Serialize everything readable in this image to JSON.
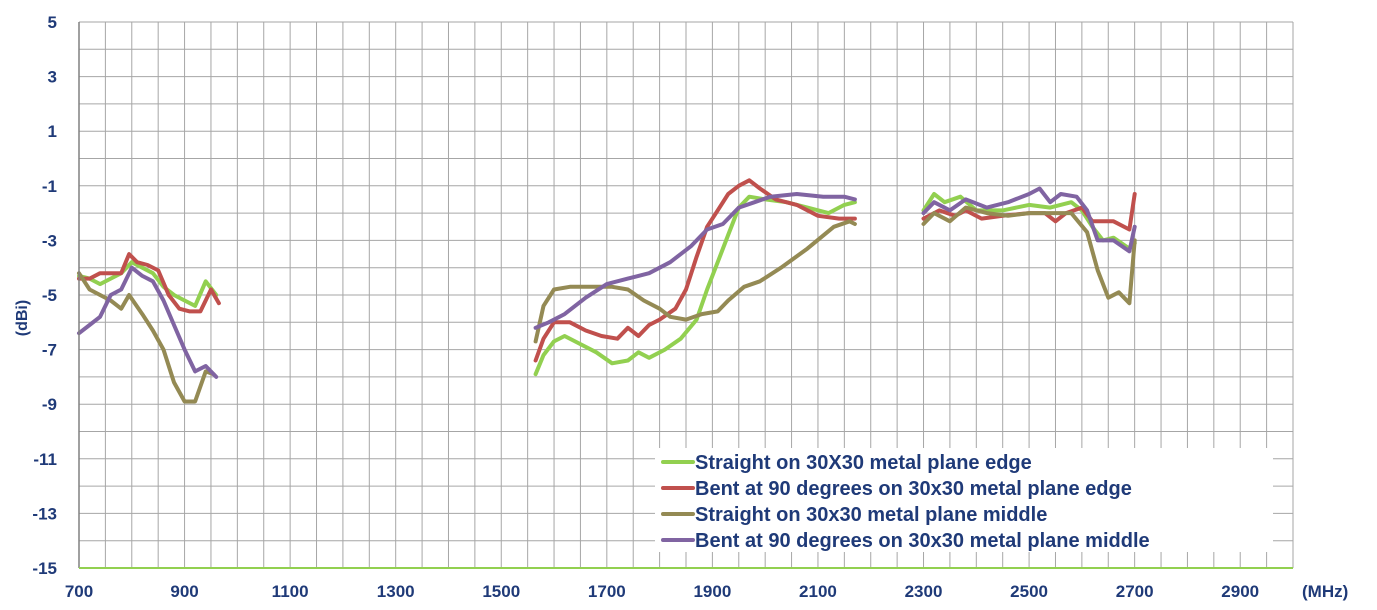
{
  "chart_data": {
    "type": "line",
    "xlabel": "",
    "xunit": "(MHz)",
    "ylabel": "(dBi)",
    "xlim": [
      700,
      3000
    ],
    "ylim": [
      -15,
      5
    ],
    "xticks": [
      700,
      900,
      1100,
      1300,
      1500,
      1700,
      1900,
      2100,
      2300,
      2500,
      2700,
      2900
    ],
    "yticks": [
      5,
      3,
      1,
      -1,
      -3,
      -5,
      -7,
      -9,
      -11,
      -13,
      -15
    ],
    "grid": true,
    "legend_position": "bottom-right",
    "series": [
      {
        "name": "Straight on 30X30 metal plane edge",
        "color": "#92d050",
        "segments": [
          [
            [
              700,
              -4.3
            ],
            [
              720,
              -4.4
            ],
            [
              740,
              -4.6
            ],
            [
              760,
              -4.4
            ],
            [
              780,
              -4.2
            ],
            [
              800,
              -3.8
            ],
            [
              820,
              -4.0
            ],
            [
              840,
              -4.2
            ],
            [
              860,
              -4.7
            ],
            [
              880,
              -5.0
            ],
            [
              900,
              -5.2
            ],
            [
              920,
              -5.4
            ],
            [
              940,
              -4.5
            ],
            [
              960,
              -5.0
            ]
          ],
          [
            [
              1565,
              -7.9
            ],
            [
              1580,
              -7.2
            ],
            [
              1600,
              -6.7
            ],
            [
              1620,
              -6.5
            ],
            [
              1650,
              -6.8
            ],
            [
              1680,
              -7.1
            ],
            [
              1710,
              -7.5
            ],
            [
              1740,
              -7.4
            ],
            [
              1760,
              -7.1
            ],
            [
              1780,
              -7.3
            ],
            [
              1810,
              -7.0
            ],
            [
              1840,
              -6.6
            ],
            [
              1870,
              -5.9
            ],
            [
              1890,
              -4.8
            ],
            [
              1910,
              -3.8
            ],
            [
              1930,
              -2.8
            ],
            [
              1950,
              -1.8
            ],
            [
              1970,
              -1.4
            ],
            [
              2000,
              -1.5
            ],
            [
              2040,
              -1.6
            ],
            [
              2080,
              -1.8
            ],
            [
              2120,
              -2.0
            ],
            [
              2150,
              -1.7
            ],
            [
              2170,
              -1.6
            ]
          ],
          [
            [
              2300,
              -1.9
            ],
            [
              2320,
              -1.3
            ],
            [
              2340,
              -1.6
            ],
            [
              2370,
              -1.4
            ],
            [
              2400,
              -1.9
            ],
            [
              2450,
              -1.9
            ],
            [
              2500,
              -1.7
            ],
            [
              2540,
              -1.8
            ],
            [
              2580,
              -1.6
            ],
            [
              2600,
              -1.9
            ],
            [
              2620,
              -2.5
            ],
            [
              2640,
              -3.0
            ],
            [
              2660,
              -2.9
            ],
            [
              2690,
              -3.3
            ],
            [
              2700,
              -3.1
            ]
          ]
        ]
      },
      {
        "name": "Bent at 90 degrees on 30x30 metal plane edge",
        "color": "#c0504d",
        "segments": [
          [
            [
              700,
              -4.4
            ],
            [
              720,
              -4.4
            ],
            [
              740,
              -4.2
            ],
            [
              760,
              -4.2
            ],
            [
              780,
              -4.2
            ],
            [
              795,
              -3.5
            ],
            [
              810,
              -3.8
            ],
            [
              830,
              -3.9
            ],
            [
              850,
              -4.1
            ],
            [
              870,
              -5.0
            ],
            [
              890,
              -5.5
            ],
            [
              910,
              -5.6
            ],
            [
              930,
              -5.6
            ],
            [
              950,
              -4.8
            ],
            [
              965,
              -5.3
            ]
          ],
          [
            [
              1565,
              -7.4
            ],
            [
              1580,
              -6.6
            ],
            [
              1600,
              -6.0
            ],
            [
              1630,
              -6.0
            ],
            [
              1660,
              -6.3
            ],
            [
              1690,
              -6.5
            ],
            [
              1720,
              -6.6
            ],
            [
              1740,
              -6.2
            ],
            [
              1760,
              -6.5
            ],
            [
              1780,
              -6.1
            ],
            [
              1800,
              -5.9
            ],
            [
              1830,
              -5.5
            ],
            [
              1850,
              -4.8
            ],
            [
              1870,
              -3.6
            ],
            [
              1890,
              -2.5
            ],
            [
              1910,
              -1.9
            ],
            [
              1930,
              -1.3
            ],
            [
              1950,
              -1.0
            ],
            [
              1970,
              -0.8
            ],
            [
              1990,
              -1.1
            ],
            [
              2020,
              -1.5
            ],
            [
              2060,
              -1.7
            ],
            [
              2100,
              -2.1
            ],
            [
              2140,
              -2.2
            ],
            [
              2170,
              -2.2
            ]
          ],
          [
            [
              2300,
              -2.2
            ],
            [
              2330,
              -1.9
            ],
            [
              2360,
              -2.1
            ],
            [
              2380,
              -1.9
            ],
            [
              2410,
              -2.2
            ],
            [
              2450,
              -2.1
            ],
            [
              2500,
              -2.0
            ],
            [
              2530,
              -2.0
            ],
            [
              2550,
              -2.3
            ],
            [
              2570,
              -2.0
            ],
            [
              2600,
              -1.8
            ],
            [
              2620,
              -2.3
            ],
            [
              2660,
              -2.3
            ],
            [
              2690,
              -2.6
            ],
            [
              2700,
              -1.3
            ]
          ]
        ]
      },
      {
        "name": "Straight on 30x30 metal plane middle",
        "color": "#948a54",
        "segments": [
          [
            [
              700,
              -4.2
            ],
            [
              720,
              -4.8
            ],
            [
              740,
              -5.0
            ],
            [
              760,
              -5.2
            ],
            [
              780,
              -5.5
            ],
            [
              795,
              -5.0
            ],
            [
              820,
              -5.7
            ],
            [
              840,
              -6.3
            ],
            [
              860,
              -7.0
            ],
            [
              880,
              -8.2
            ],
            [
              900,
              -8.9
            ],
            [
              920,
              -8.9
            ],
            [
              940,
              -7.8
            ],
            [
              955,
              -7.9
            ]
          ],
          [
            [
              1565,
              -6.7
            ],
            [
              1580,
              -5.4
            ],
            [
              1600,
              -4.8
            ],
            [
              1630,
              -4.7
            ],
            [
              1670,
              -4.7
            ],
            [
              1710,
              -4.7
            ],
            [
              1740,
              -4.8
            ],
            [
              1770,
              -5.2
            ],
            [
              1800,
              -5.5
            ],
            [
              1820,
              -5.8
            ],
            [
              1850,
              -5.9
            ],
            [
              1880,
              -5.7
            ],
            [
              1910,
              -5.6
            ],
            [
              1930,
              -5.2
            ],
            [
              1960,
              -4.7
            ],
            [
              1990,
              -4.5
            ],
            [
              2030,
              -4.0
            ],
            [
              2080,
              -3.3
            ],
            [
              2130,
              -2.5
            ],
            [
              2160,
              -2.3
            ],
            [
              2170,
              -2.4
            ]
          ],
          [
            [
              2300,
              -2.4
            ],
            [
              2320,
              -2.0
            ],
            [
              2350,
              -2.3
            ],
            [
              2380,
              -1.8
            ],
            [
              2420,
              -2.0
            ],
            [
              2460,
              -2.1
            ],
            [
              2500,
              -2.0
            ],
            [
              2540,
              -2.0
            ],
            [
              2580,
              -2.0
            ],
            [
              2610,
              -2.7
            ],
            [
              2630,
              -4.1
            ],
            [
              2650,
              -5.1
            ],
            [
              2670,
              -4.9
            ],
            [
              2690,
              -5.3
            ],
            [
              2700,
              -3.0
            ]
          ]
        ]
      },
      {
        "name": "Bent at 90 degrees on 30x30 metal plane middle",
        "color": "#8064a2",
        "segments": [
          [
            [
              700,
              -6.4
            ],
            [
              720,
              -6.1
            ],
            [
              740,
              -5.8
            ],
            [
              760,
              -5.0
            ],
            [
              780,
              -4.8
            ],
            [
              800,
              -4.0
            ],
            [
              820,
              -4.3
            ],
            [
              840,
              -4.5
            ],
            [
              860,
              -5.2
            ],
            [
              880,
              -6.1
            ],
            [
              900,
              -7.0
            ],
            [
              920,
              -7.8
            ],
            [
              940,
              -7.6
            ],
            [
              960,
              -8.0
            ]
          ],
          [
            [
              1565,
              -6.2
            ],
            [
              1590,
              -6.0
            ],
            [
              1620,
              -5.7
            ],
            [
              1660,
              -5.1
            ],
            [
              1700,
              -4.6
            ],
            [
              1740,
              -4.4
            ],
            [
              1780,
              -4.2
            ],
            [
              1820,
              -3.8
            ],
            [
              1860,
              -3.2
            ],
            [
              1890,
              -2.6
            ],
            [
              1920,
              -2.4
            ],
            [
              1950,
              -1.8
            ],
            [
              1980,
              -1.6
            ],
            [
              2010,
              -1.4
            ],
            [
              2060,
              -1.3
            ],
            [
              2110,
              -1.4
            ],
            [
              2150,
              -1.4
            ],
            [
              2170,
              -1.5
            ]
          ],
          [
            [
              2300,
              -2.0
            ],
            [
              2320,
              -1.6
            ],
            [
              2350,
              -1.9
            ],
            [
              2380,
              -1.5
            ],
            [
              2420,
              -1.8
            ],
            [
              2460,
              -1.6
            ],
            [
              2500,
              -1.3
            ],
            [
              2520,
              -1.1
            ],
            [
              2540,
              -1.6
            ],
            [
              2560,
              -1.3
            ],
            [
              2590,
              -1.4
            ],
            [
              2610,
              -1.9
            ],
            [
              2630,
              -3.0
            ],
            [
              2660,
              -3.0
            ],
            [
              2690,
              -3.4
            ],
            [
              2700,
              -2.5
            ]
          ]
        ]
      }
    ]
  }
}
